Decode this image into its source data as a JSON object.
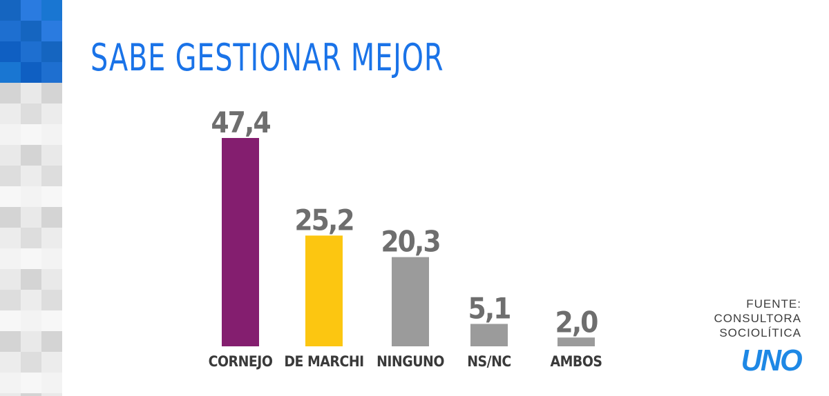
{
  "title": "SABE GESTIONAR MEJOR",
  "source": {
    "line1": "FUENTE:",
    "line2": "CONSULTORA",
    "line3": "SOCIOLÍTICA"
  },
  "logo_text": "UNO",
  "colors": {
    "title": "#1a73e8",
    "value_labels": "#6e6e6e",
    "category_labels": "#3a3a3a",
    "logo": "#1e88e5"
  },
  "chart_data": {
    "type": "bar",
    "title": "SABE GESTIONAR MEJOR",
    "categories": [
      "CORNEJO",
      "DE MARCHI",
      "NINGUNO",
      "NS/NC",
      "AMBOS"
    ],
    "values": [
      47.4,
      25.2,
      20.3,
      5.1,
      2.0
    ],
    "value_labels": [
      "47,4",
      "25,2",
      "20,3",
      "5,1",
      "2,0"
    ],
    "bar_colors": [
      "#841e6f",
      "#fcc611",
      "#9b9b9b",
      "#9b9b9b",
      "#9b9b9b"
    ],
    "xlabel": "",
    "ylabel": "",
    "ylim": [
      0,
      50
    ],
    "grid": false,
    "legend": "none"
  }
}
